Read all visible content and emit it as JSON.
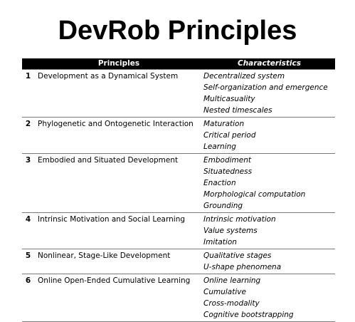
{
  "title": "DevRob Principles",
  "table": {
    "headers": {
      "principles": "Principles",
      "characteristics": "Characteristics"
    },
    "rows": [
      {
        "num": "1",
        "principle": "Development as a Dynamical System",
        "characteristics": [
          "Decentralized system",
          "Self-organization and emergence",
          "Multicasuality",
          "Nested timescales"
        ]
      },
      {
        "num": "2",
        "principle": "Phylogenetic and Ontogenetic Interaction",
        "characteristics": [
          "Maturation",
          "Critical period",
          "Learning"
        ]
      },
      {
        "num": "3",
        "principle": "Embodied and Situated Development",
        "characteristics": [
          "Embodiment",
          "Situatedness",
          "Enaction",
          "Morphological computation",
          "Grounding"
        ]
      },
      {
        "num": "4",
        "principle": "Intrinsic Motivation and Social Learning",
        "characteristics": [
          "Intrinsic motivation",
          "Value systems",
          "Imitation"
        ]
      },
      {
        "num": "5",
        "principle": "Nonlinear, Stage-Like Development",
        "characteristics": [
          "Qualitative stages",
          "U-shape phenomena"
        ]
      },
      {
        "num": "6",
        "principle": "Online Open-Ended Cumulative Learning",
        "characteristics": [
          "Online learning",
          "Cumulative",
          "Cross-modality",
          "Cognitive bootstrapping"
        ]
      }
    ]
  }
}
